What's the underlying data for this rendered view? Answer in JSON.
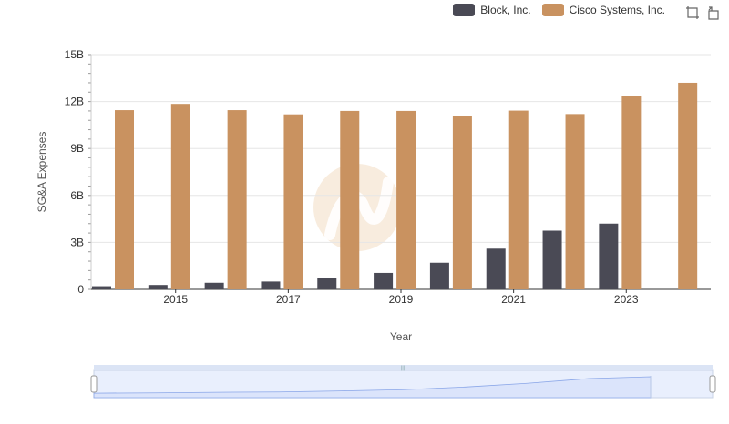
{
  "colors": {
    "block": "#4a4a55",
    "cisco": "#c99260",
    "grid": "#e6e6e6",
    "axis": "#333333",
    "watermark": "#f5e6d3",
    "slider_fill": "#dbe4fb",
    "slider_line": "#8aa6e8",
    "slider_border": "#c9d3e6",
    "slider_bg": "#e9effd"
  },
  "toolbox": {
    "zoom_icon": "zoom-icon",
    "restore_icon": "restore-icon"
  },
  "chart_data": {
    "type": "bar",
    "xlabel": "Year",
    "ylabel": "SG&A Expenses",
    "ylim": [
      0,
      15000000000
    ],
    "yticks": [
      "0",
      "3B",
      "6B",
      "9B",
      "12B",
      "15B"
    ],
    "xticks": [
      "2015",
      "2017",
      "2019",
      "2021",
      "2023"
    ],
    "categories": [
      "2014",
      "2015",
      "2016",
      "2017",
      "2018",
      "2019",
      "2020",
      "2021",
      "2022",
      "2023",
      "2024"
    ],
    "legend_position": "top-right",
    "grid": true,
    "series": [
      {
        "name": "Block, Inc.",
        "color": "#4a4a55",
        "values": [
          200000000,
          280000000,
          420000000,
          500000000,
          750000000,
          1050000000,
          1700000000,
          2600000000,
          3750000000,
          4200000000,
          null
        ]
      },
      {
        "name": "Cisco Systems, Inc.",
        "color": "#c99260",
        "values": [
          11450000000,
          11850000000,
          11450000000,
          11180000000,
          11400000000,
          11400000000,
          11100000000,
          11420000000,
          11200000000,
          12350000000,
          13200000000
        ]
      }
    ]
  }
}
